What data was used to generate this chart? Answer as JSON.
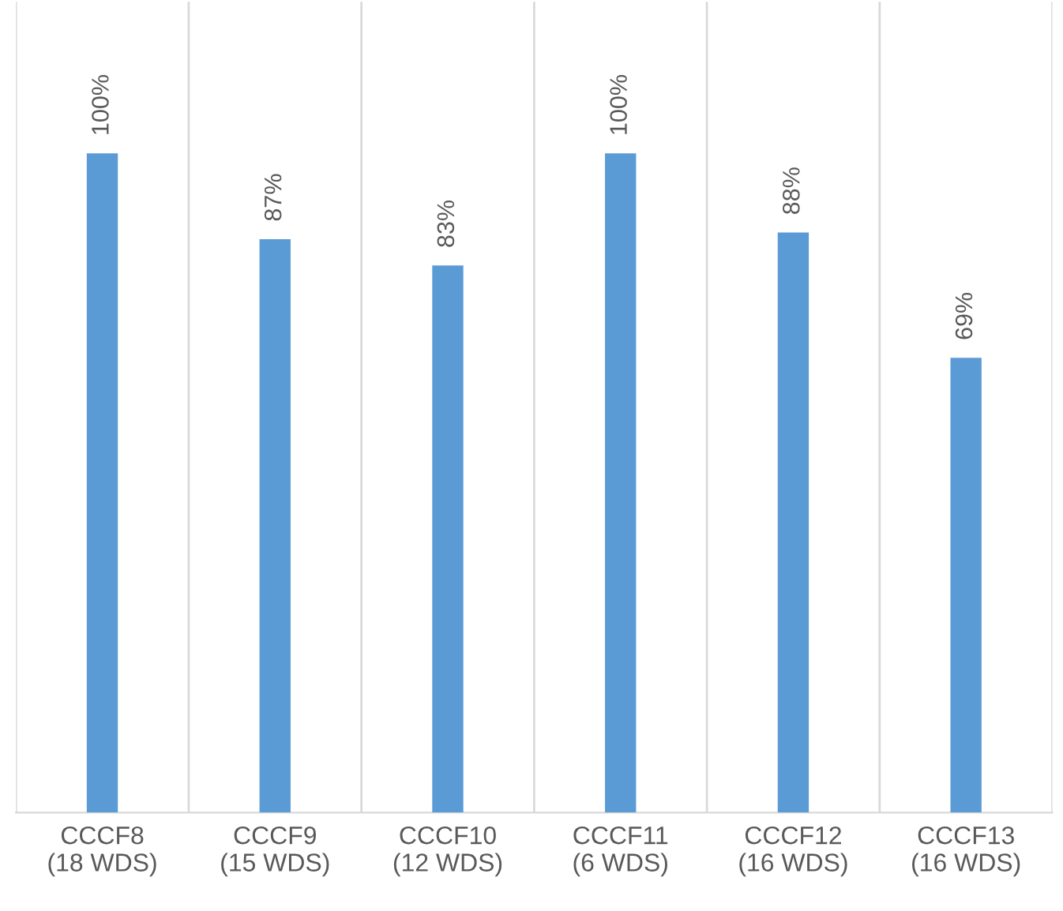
{
  "chart_data": {
    "type": "bar",
    "categories": [
      "CCCF8\n(18 WDS)",
      "CCCF9\n(15 WDS)",
      "CCCF10\n(12 WDS)",
      "CCCF11\n(6 WDS)",
      "CCCF12\n(16 WDS)",
      "CCCF13\n(16 WDS)"
    ],
    "values": [
      100,
      87,
      83,
      100,
      88,
      69
    ],
    "value_labels": [
      "100%",
      "87%",
      "83%",
      "100%",
      "88%",
      "69%"
    ],
    "color": "#5b9bd5",
    "grid": "x"
  }
}
